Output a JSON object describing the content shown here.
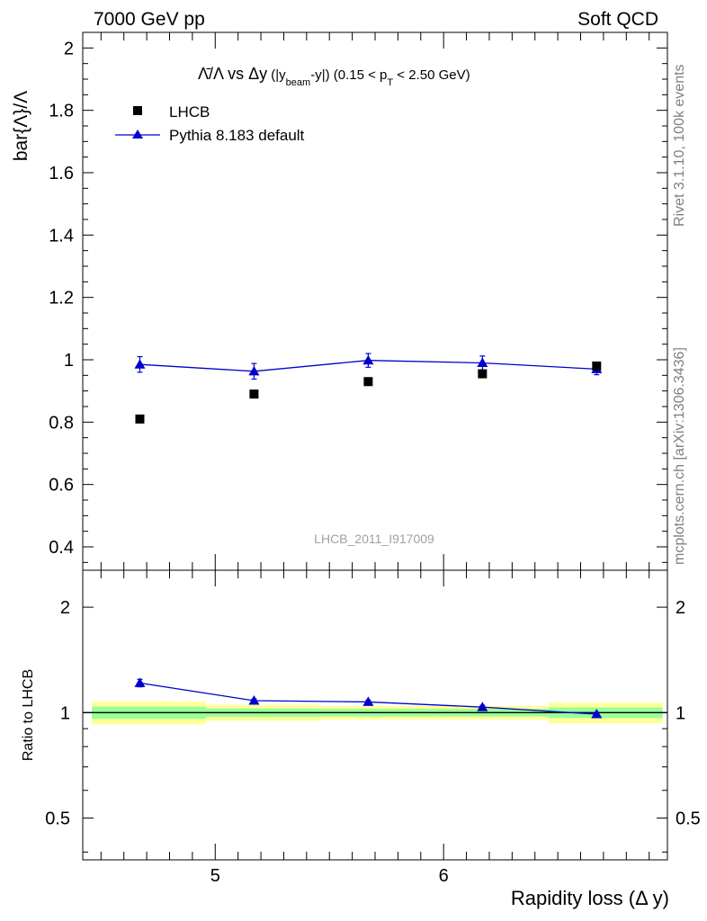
{
  "header": {
    "left": "7000 GeV pp",
    "right": "Soft QCD"
  },
  "side_labels": {
    "rivet": "Rivet 3.1.10,  100k events",
    "mcplots": "mcplots.cern.ch [arXiv:1306.3436]"
  },
  "chart_data": [
    {
      "type": "scatter",
      "panel": "main",
      "title": {
        "frac": "Λ̄/Λ",
        "vs": " vs ",
        "delta": "Δy",
        "paren_open": " (|y",
        "beam": "beam",
        "paren_close": "-y|)",
        "range_open": " (0.15 < p",
        "pt_sub": "T",
        "range_close": " < 2.50 GeV)"
      },
      "ylabel": "bar{Λ}/Λ",
      "xlim": [
        4.42,
        6.98
      ],
      "ylim": [
        0.325,
        2.05
      ],
      "yticks": [
        0.4,
        0.6,
        0.8,
        1,
        1.2,
        1.4,
        1.6,
        1.8,
        2
      ],
      "ytick_labels": [
        "0.4",
        "0.6",
        "0.8",
        "1",
        "1.2",
        "1.4",
        "1.6",
        "1.8",
        "2"
      ],
      "watermark": "LHCB_2011_I917009",
      "legend_position": "top-left",
      "series": [
        {
          "name": "LHCB",
          "marker": "square",
          "color": "#000000",
          "x": [
            4.67,
            5.17,
            5.67,
            6.17,
            6.67
          ],
          "y": [
            0.81,
            0.89,
            0.93,
            0.955,
            0.98
          ]
        },
        {
          "name": "Pythia 8.183 default",
          "marker": "triangle",
          "line": true,
          "color": "#0000cc",
          "x": [
            4.67,
            5.17,
            5.67,
            6.17,
            6.67
          ],
          "y": [
            0.985,
            0.963,
            0.998,
            0.99,
            0.97
          ],
          "yerr": [
            0.025,
            0.025,
            0.022,
            0.022,
            0.018
          ]
        }
      ]
    },
    {
      "type": "scatter",
      "panel": "ratio",
      "ylabel": "Ratio to LHCB",
      "xlabel": "Rapidity loss (Δ y)",
      "xlim": [
        4.42,
        6.98
      ],
      "ylim": [
        0.38,
        2.55
      ],
      "log_y": true,
      "yticks_major": [
        0.5,
        1,
        2
      ],
      "ytick_labels": [
        "0.5",
        "1",
        "2"
      ],
      "xticks_major": [
        5,
        6
      ],
      "xtick_labels": [
        "5",
        "6"
      ],
      "uncertainty_bands": {
        "bin_edges": [
          4.42,
          4.92,
          5.42,
          5.92,
          6.42,
          6.92
        ],
        "yellow_half_width": [
          0.075,
          0.052,
          0.045,
          0.045,
          0.068
        ],
        "green_half_width": [
          0.04,
          0.028,
          0.025,
          0.025,
          0.035
        ],
        "yellow_color": "#ffff99",
        "green_color": "#99ff99"
      },
      "series": [
        {
          "name": "Pythia 8.183 default / LHCB",
          "marker": "triangle",
          "line": true,
          "color": "#0000cc",
          "x": [
            4.67,
            5.17,
            5.67,
            6.17,
            6.67
          ],
          "y": [
            1.215,
            1.082,
            1.073,
            1.037,
            0.99
          ],
          "yerr": [
            0.03,
            0.012,
            0.012,
            0.012,
            0.012
          ]
        }
      ]
    }
  ]
}
